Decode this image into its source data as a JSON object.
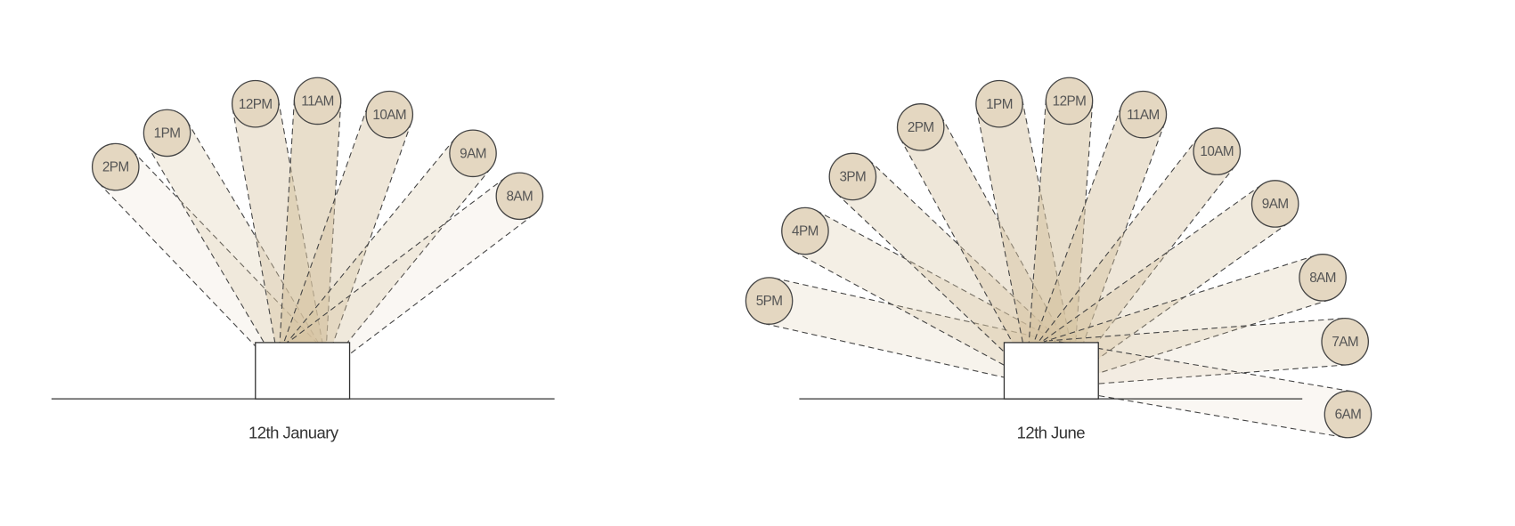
{
  "diagrams": [
    {
      "label": "12th January",
      "suns": [
        "2PM",
        "1PM",
        "12PM",
        "11AM",
        "10AM",
        "9AM",
        "8AM"
      ]
    },
    {
      "label": "12th June",
      "suns": [
        "5PM",
        "4PM",
        "3PM",
        "2PM",
        "1PM",
        "12PM",
        "11AM",
        "10AM",
        "9AM",
        "8AM",
        "7AM",
        "6AM"
      ]
    }
  ]
}
